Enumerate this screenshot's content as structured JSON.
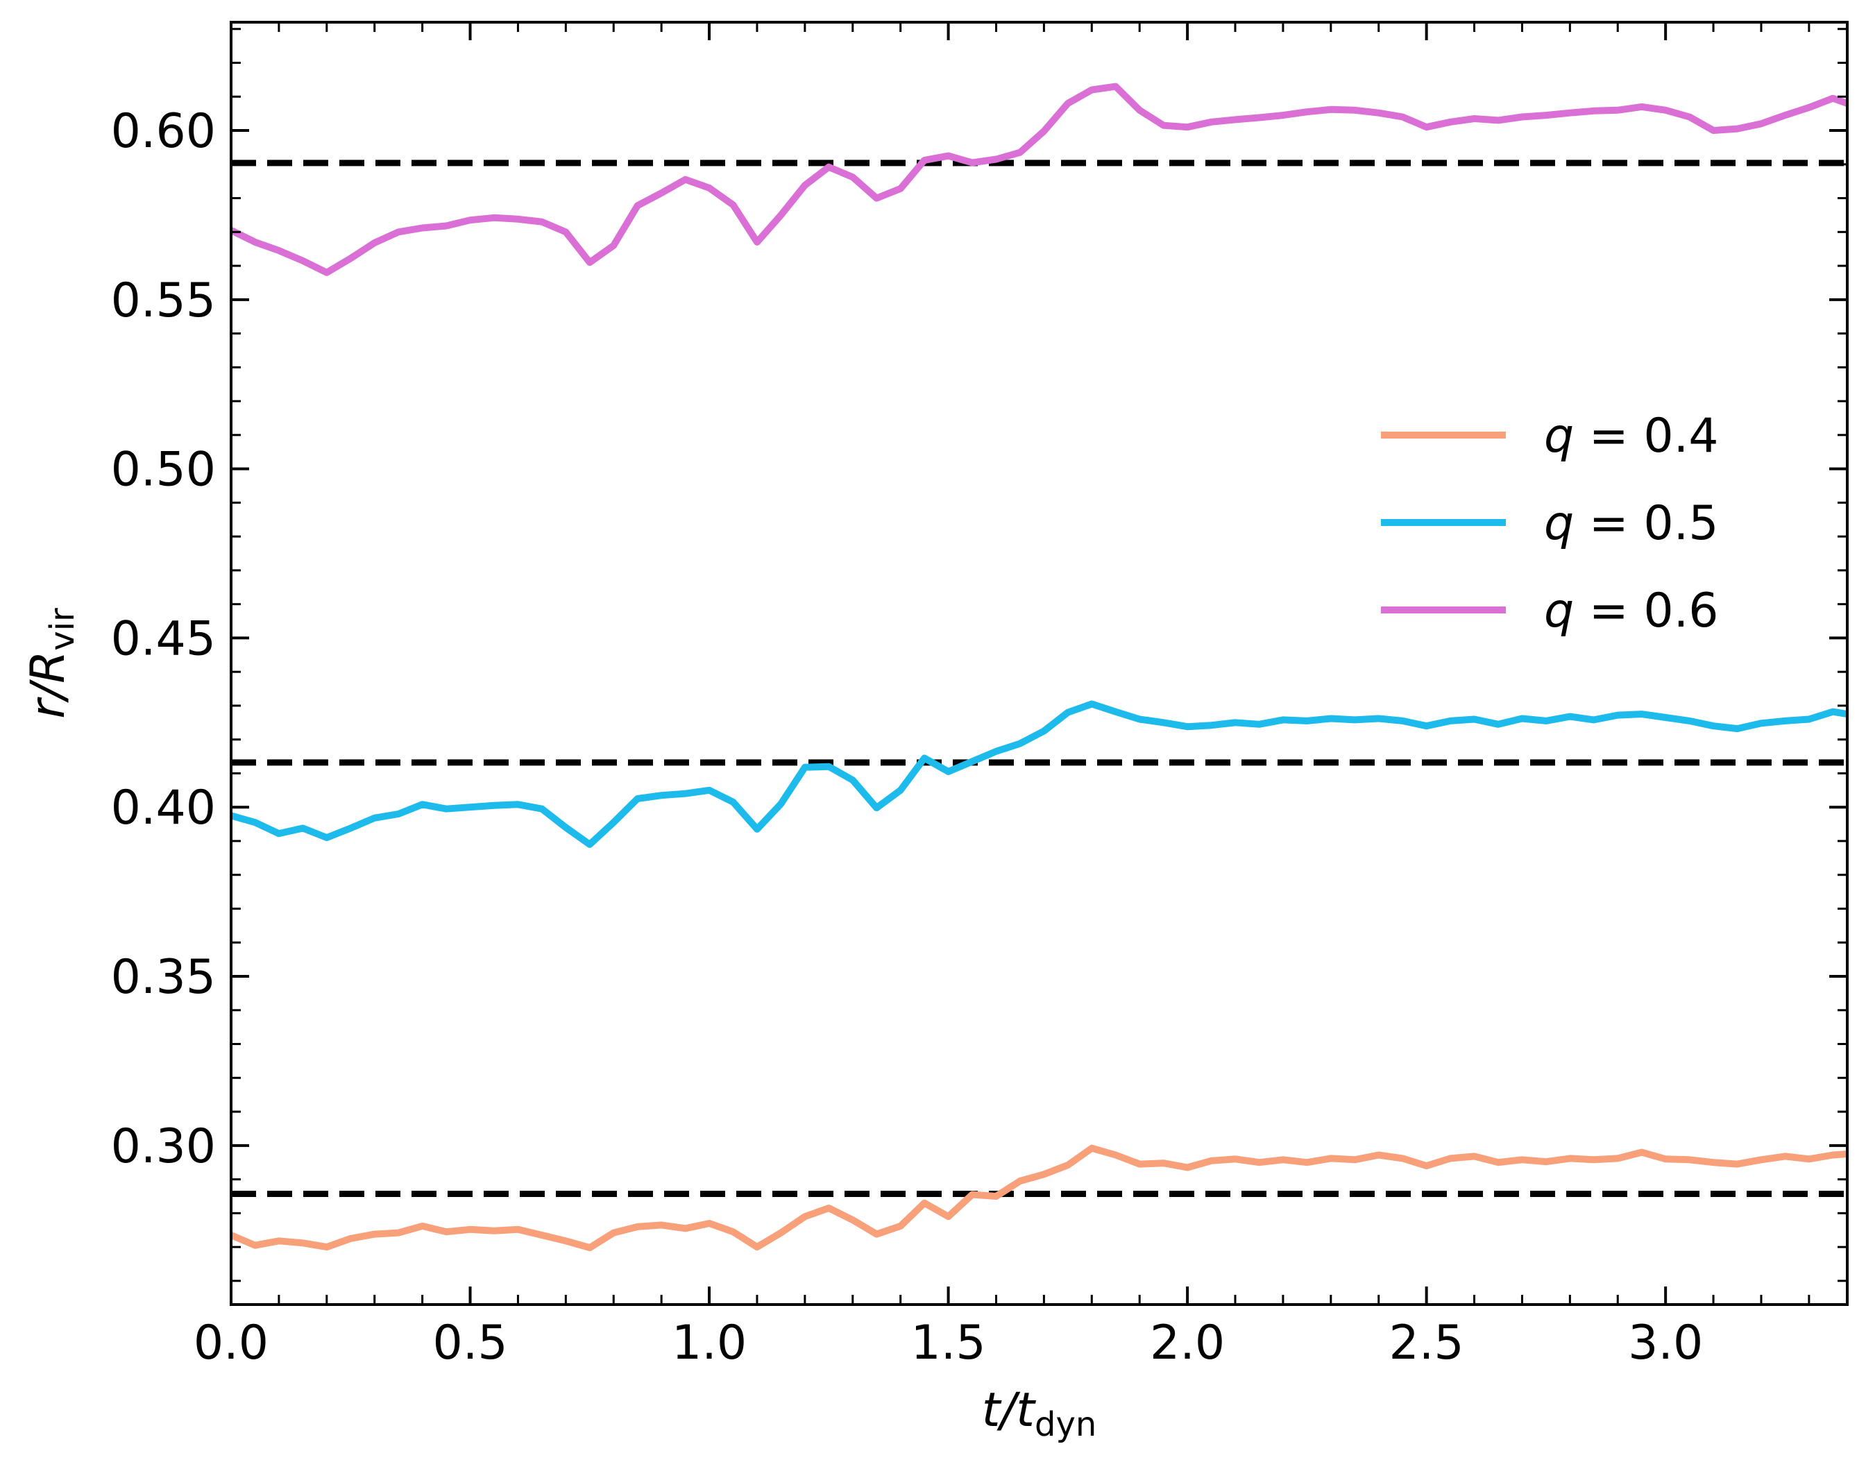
{
  "chart_data": {
    "type": "line",
    "xlabel": {
      "main": "t/t",
      "sub": "dyn"
    },
    "ylabel": {
      "main": "r/R",
      "sub": "vir"
    },
    "xlim": [
      0,
      3.38
    ],
    "ylim": [
      0.253,
      0.632
    ],
    "xticks": [
      0.0,
      0.5,
      1.0,
      1.5,
      2.0,
      2.5,
      3.0
    ],
    "xtick_labels": [
      "0.0",
      "0.5",
      "1.0",
      "1.5",
      "2.0",
      "2.5",
      "3.0"
    ],
    "yticks": [
      0.3,
      0.35,
      0.4,
      0.45,
      0.5,
      0.55,
      0.6
    ],
    "ytick_labels": [
      "0.30",
      "0.35",
      "0.40",
      "0.45",
      "0.50",
      "0.55",
      "0.60"
    ],
    "grid": false,
    "legend_position": "right",
    "reference_lines": [
      {
        "style": "dashed",
        "color": "#000000",
        "y": 0.2857
      },
      {
        "style": "dashed",
        "color": "#000000",
        "y": 0.4132
      },
      {
        "style": "dashed",
        "color": "#000000",
        "y": 0.5904
      }
    ],
    "series": [
      {
        "name": "q = 0.4",
        "legend_text": "q = 0.4",
        "color": "#f7a07a",
        "x": [
          0.0,
          0.05,
          0.1,
          0.15,
          0.2,
          0.25,
          0.3,
          0.35,
          0.4,
          0.45,
          0.5,
          0.55,
          0.6,
          0.65,
          0.7,
          0.75,
          0.8,
          0.85,
          0.9,
          0.95,
          1.0,
          1.05,
          1.1,
          1.15,
          1.2,
          1.25,
          1.3,
          1.35,
          1.4,
          1.45,
          1.5,
          1.55,
          1.6,
          1.65,
          1.7,
          1.75,
          1.8,
          1.85,
          1.9,
          1.95,
          2.0,
          2.05,
          2.1,
          2.15,
          2.2,
          2.25,
          2.3,
          2.35,
          2.4,
          2.45,
          2.5,
          2.55,
          2.6,
          2.65,
          2.7,
          2.75,
          2.8,
          2.85,
          2.9,
          2.95,
          3.0,
          3.05,
          3.1,
          3.15,
          3.2,
          3.25,
          3.3,
          3.35,
          3.38
        ],
        "y": [
          0.2735,
          0.2705,
          0.2718,
          0.2712,
          0.27,
          0.2725,
          0.2738,
          0.2742,
          0.2762,
          0.2745,
          0.2752,
          0.2748,
          0.2752,
          0.2735,
          0.2718,
          0.2698,
          0.2742,
          0.276,
          0.2765,
          0.2755,
          0.277,
          0.2745,
          0.27,
          0.2742,
          0.279,
          0.2815,
          0.278,
          0.2738,
          0.2762,
          0.283,
          0.279,
          0.2855,
          0.285,
          0.2895,
          0.2915,
          0.2942,
          0.2992,
          0.2972,
          0.2945,
          0.2948,
          0.2935,
          0.2955,
          0.296,
          0.295,
          0.2958,
          0.295,
          0.2962,
          0.2958,
          0.2972,
          0.2962,
          0.294,
          0.2962,
          0.2968,
          0.295,
          0.2958,
          0.2952,
          0.2962,
          0.2958,
          0.2962,
          0.298,
          0.296,
          0.2958,
          0.295,
          0.2945,
          0.2958,
          0.2968,
          0.296,
          0.2972,
          0.2975
        ]
      },
      {
        "name": "q = 0.5",
        "legend_text": "q = 0.5",
        "color": "#1cbbec",
        "x": [
          0.0,
          0.05,
          0.1,
          0.15,
          0.2,
          0.25,
          0.3,
          0.35,
          0.4,
          0.45,
          0.5,
          0.55,
          0.6,
          0.65,
          0.7,
          0.75,
          0.8,
          0.85,
          0.9,
          0.95,
          1.0,
          1.05,
          1.1,
          1.15,
          1.2,
          1.25,
          1.3,
          1.35,
          1.4,
          1.45,
          1.5,
          1.55,
          1.6,
          1.65,
          1.7,
          1.75,
          1.8,
          1.85,
          1.9,
          1.95,
          2.0,
          2.05,
          2.1,
          2.15,
          2.2,
          2.25,
          2.3,
          2.35,
          2.4,
          2.45,
          2.5,
          2.55,
          2.6,
          2.65,
          2.7,
          2.75,
          2.8,
          2.85,
          2.9,
          2.95,
          3.0,
          3.05,
          3.1,
          3.15,
          3.2,
          3.25,
          3.3,
          3.35,
          3.38
        ],
        "y": [
          0.3975,
          0.3955,
          0.3922,
          0.3938,
          0.391,
          0.3938,
          0.3968,
          0.398,
          0.4008,
          0.3995,
          0.4,
          0.4005,
          0.4008,
          0.3995,
          0.394,
          0.389,
          0.3955,
          0.4025,
          0.4035,
          0.404,
          0.405,
          0.4015,
          0.3935,
          0.401,
          0.4118,
          0.412,
          0.408,
          0.3998,
          0.405,
          0.4145,
          0.4105,
          0.4135,
          0.4165,
          0.4188,
          0.4225,
          0.428,
          0.4305,
          0.4282,
          0.426,
          0.425,
          0.4238,
          0.4242,
          0.425,
          0.4245,
          0.4258,
          0.4255,
          0.4262,
          0.4258,
          0.4262,
          0.4255,
          0.424,
          0.4255,
          0.426,
          0.4245,
          0.4262,
          0.4255,
          0.4268,
          0.4258,
          0.4272,
          0.4275,
          0.4265,
          0.4255,
          0.424,
          0.4232,
          0.4248,
          0.4255,
          0.426,
          0.4282,
          0.4275
        ]
      },
      {
        "name": "q = 0.6",
        "legend_text": "q = 0.6",
        "color": "#da70d6",
        "x": [
          0.0,
          0.05,
          0.1,
          0.15,
          0.2,
          0.25,
          0.3,
          0.35,
          0.4,
          0.45,
          0.5,
          0.55,
          0.6,
          0.65,
          0.7,
          0.75,
          0.8,
          0.85,
          0.9,
          0.95,
          1.0,
          1.05,
          1.1,
          1.15,
          1.2,
          1.25,
          1.3,
          1.35,
          1.4,
          1.45,
          1.5,
          1.55,
          1.6,
          1.65,
          1.7,
          1.75,
          1.8,
          1.85,
          1.9,
          1.95,
          2.0,
          2.05,
          2.1,
          2.15,
          2.2,
          2.25,
          2.3,
          2.35,
          2.4,
          2.45,
          2.5,
          2.55,
          2.6,
          2.65,
          2.7,
          2.75,
          2.8,
          2.85,
          2.9,
          2.95,
          3.0,
          3.05,
          3.1,
          3.15,
          3.2,
          3.25,
          3.3,
          3.35,
          3.38
        ],
        "y": [
          0.5705,
          0.567,
          0.5645,
          0.5615,
          0.558,
          0.5622,
          0.5668,
          0.57,
          0.5712,
          0.5718,
          0.5735,
          0.5742,
          0.5738,
          0.573,
          0.57,
          0.561,
          0.566,
          0.5778,
          0.5815,
          0.5855,
          0.583,
          0.578,
          0.567,
          0.575,
          0.5838,
          0.5892,
          0.5862,
          0.58,
          0.5828,
          0.5912,
          0.5925,
          0.5905,
          0.5915,
          0.5935,
          0.5998,
          0.608,
          0.612,
          0.613,
          0.606,
          0.6015,
          0.601,
          0.6025,
          0.6032,
          0.6038,
          0.6045,
          0.6055,
          0.6062,
          0.606,
          0.6052,
          0.604,
          0.601,
          0.6025,
          0.6035,
          0.603,
          0.604,
          0.6045,
          0.6052,
          0.6058,
          0.606,
          0.607,
          0.606,
          0.604,
          0.6,
          0.6005,
          0.602,
          0.6045,
          0.6068,
          0.6095,
          0.608
        ]
      }
    ]
  }
}
